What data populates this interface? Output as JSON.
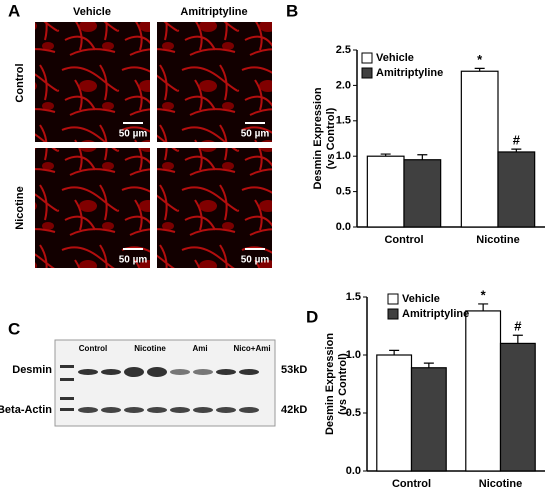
{
  "panel_labels": [
    "A",
    "B",
    "C",
    "D"
  ],
  "panel_a": {
    "columns": [
      "Vehicle",
      "Amitriptyline"
    ],
    "rows": [
      "Control",
      "Nicotine"
    ],
    "scale_bar": "50 µm"
  },
  "panel_c": {
    "lanes": [
      "Control",
      "Nicotine",
      "Ami",
      "Nico+Ami"
    ],
    "rows": [
      "Desmin",
      "Beta-Actin"
    ],
    "sizes": [
      "53kD",
      "42kD"
    ]
  },
  "chart_data": [
    {
      "type": "bar",
      "ylabel": [
        "Desmin Expression",
        "(vs Control)"
      ],
      "categories": [
        "Control",
        "Nicotine"
      ],
      "series": [
        {
          "name": "Vehicle",
          "color": "#ffffff",
          "values": [
            1.0,
            2.2
          ],
          "errors": [
            0.03,
            0.04
          ]
        },
        {
          "name": "Amitriptyline",
          "color": "#404040",
          "values": [
            0.95,
            1.06
          ],
          "errors": [
            0.07,
            0.04
          ]
        }
      ],
      "ylim": [
        0,
        2.5
      ],
      "yticks": [
        {
          "value": 0,
          "label": "0.0"
        },
        {
          "value": 0.5,
          "label": "0.5"
        },
        {
          "value": 1,
          "label": "1.0"
        },
        {
          "value": 1.5,
          "label": "1.5"
        },
        {
          "value": 2,
          "label": "2.0"
        },
        {
          "value": 2.5,
          "label": "2.5"
        }
      ],
      "annotations": [
        "*",
        "#"
      ]
    },
    {
      "type": "bar",
      "ylabel": [
        "Desmin Expression",
        "(vs Control)"
      ],
      "categories": [
        "Control",
        "Nicotine"
      ],
      "series": [
        {
          "name": "Vehicle",
          "color": "#ffffff",
          "values": [
            1.0,
            1.38
          ],
          "errors": [
            0.04,
            0.06
          ]
        },
        {
          "name": "Amitriptyline",
          "color": "#404040",
          "values": [
            0.89,
            1.1
          ],
          "errors": [
            0.04,
            0.07
          ]
        }
      ],
      "ylim": [
        0,
        1.5
      ],
      "yticks": [
        {
          "value": 0,
          "label": "0.0"
        },
        {
          "value": 0.5,
          "label": "0.5"
        },
        {
          "value": 1,
          "label": "1.0"
        },
        {
          "value": 1.5,
          "label": "1.5"
        }
      ],
      "annotations": [
        "*",
        "#"
      ]
    }
  ]
}
